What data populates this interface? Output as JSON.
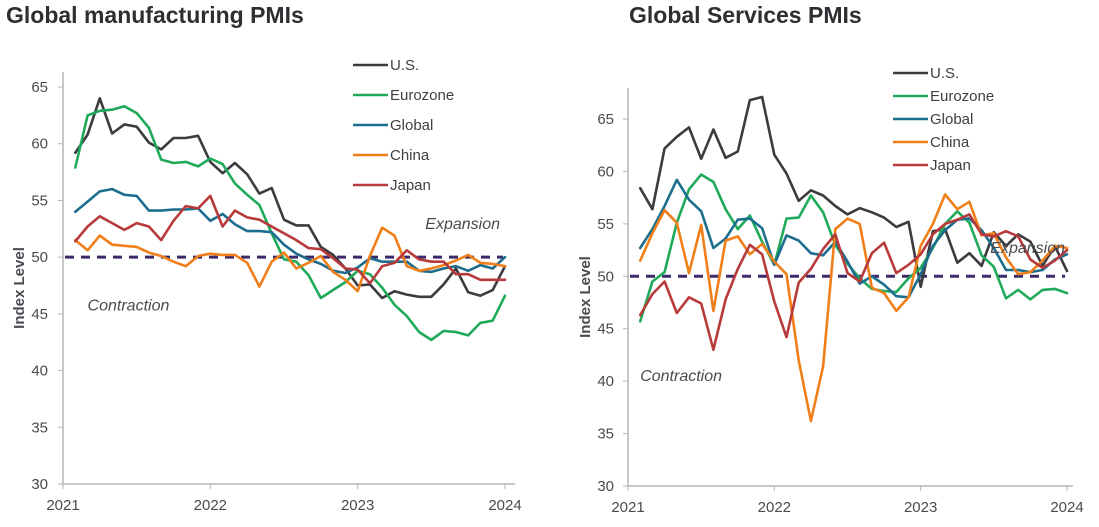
{
  "chart_data": [
    {
      "type": "line",
      "title": "Global manufacturing PMIs",
      "xlabel": "",
      "ylabel": "Index Level",
      "ylim": [
        30,
        66
      ],
      "yticks": [
        30,
        35,
        40,
        45,
        50,
        55,
        60,
        65
      ],
      "xticks": [
        "2021",
        "2022",
        "2023",
        "2024"
      ],
      "x_range": [
        "2021-01",
        "2024-01"
      ],
      "legend_position": "top-right",
      "reference_line": {
        "value": 50,
        "style": "dashed",
        "color": "#3d2a6b"
      },
      "annotations": [
        {
          "text": "Expansion",
          "x": "2023-06",
          "y": 52.5
        },
        {
          "text": "Contraction",
          "x": "2021-03",
          "y": 45.3
        }
      ],
      "x": [
        "2021-02",
        "2021-03",
        "2021-04",
        "2021-05",
        "2021-06",
        "2021-07",
        "2021-08",
        "2021-09",
        "2021-10",
        "2021-11",
        "2021-12",
        "2022-01",
        "2022-02",
        "2022-03",
        "2022-04",
        "2022-05",
        "2022-06",
        "2022-07",
        "2022-08",
        "2022-09",
        "2022-10",
        "2022-11",
        "2022-12",
        "2023-01",
        "2023-02",
        "2023-03",
        "2023-04",
        "2023-05",
        "2023-06",
        "2023-07",
        "2023-08",
        "2023-09",
        "2023-10",
        "2023-11",
        "2023-12",
        "2024-01"
      ],
      "series": [
        {
          "name": "U.S.",
          "color": "#3b3b40",
          "values": [
            59.2,
            60.8,
            64.0,
            60.9,
            61.7,
            61.5,
            60.1,
            59.5,
            60.5,
            60.5,
            60.7,
            58.4,
            57.4,
            58.3,
            57.3,
            55.6,
            56.1,
            53.3,
            52.8,
            52.8,
            50.9,
            50.2,
            49.0,
            47.5,
            47.6,
            46.4,
            47.0,
            46.7,
            46.5,
            46.5,
            47.6,
            49.0,
            46.9,
            46.6,
            47.1,
            49.2
          ]
        },
        {
          "name": "Eurozone",
          "color": "#1faa5a",
          "values": [
            57.9,
            62.5,
            62.9,
            63.0,
            63.3,
            62.7,
            61.4,
            58.6,
            58.3,
            58.4,
            58.0,
            58.7,
            58.2,
            56.5,
            55.5,
            54.6,
            52.1,
            49.8,
            49.6,
            48.4,
            46.4,
            47.1,
            47.8,
            48.8,
            48.5,
            47.3,
            45.8,
            44.8,
            43.4,
            42.7,
            43.5,
            43.4,
            43.1,
            44.2,
            44.4,
            46.6
          ]
        },
        {
          "name": "Global",
          "color": "#1d6e8e",
          "values": [
            54.0,
            54.9,
            55.8,
            56.0,
            55.5,
            55.4,
            54.1,
            54.1,
            54.2,
            54.2,
            54.3,
            53.2,
            53.8,
            52.9,
            52.3,
            52.3,
            52.2,
            51.1,
            50.3,
            49.8,
            49.4,
            48.8,
            48.6,
            49.1,
            49.9,
            49.6,
            49.6,
            49.6,
            48.8,
            48.7,
            49.0,
            49.2,
            48.8,
            49.3,
            49.0,
            50.0
          ]
        },
        {
          "name": "China",
          "color": "#f07f19",
          "values": [
            51.5,
            50.6,
            51.9,
            51.1,
            51.0,
            50.9,
            50.4,
            50.1,
            49.6,
            49.2,
            50.1,
            50.3,
            50.2,
            50.2,
            49.5,
            47.4,
            49.6,
            50.4,
            49.0,
            49.5,
            50.1,
            48.7,
            48.0,
            47.0,
            50.1,
            52.6,
            51.9,
            49.2,
            48.8,
            49.0,
            49.3,
            49.7,
            50.2,
            49.5,
            49.4,
            49.2
          ]
        },
        {
          "name": "Japan",
          "color": "#b83a3a",
          "values": [
            51.4,
            52.7,
            53.6,
            53.0,
            52.4,
            53.0,
            52.7,
            51.5,
            53.2,
            54.5,
            54.3,
            55.4,
            52.7,
            54.1,
            53.5,
            53.3,
            52.7,
            52.1,
            51.5,
            50.8,
            50.7,
            49.9,
            49.0,
            48.9,
            47.7,
            49.2,
            49.5,
            50.6,
            49.8,
            49.6,
            49.6,
            48.5,
            48.5,
            48.0,
            48.0,
            48.0
          ]
        }
      ]
    },
    {
      "type": "line",
      "title": "Global Services PMIs",
      "xlabel": "",
      "ylabel": "Index Level",
      "ylim": [
        30,
        68
      ],
      "yticks": [
        30,
        35,
        40,
        45,
        50,
        55,
        60,
        65
      ],
      "xticks": [
        "2021",
        "2022",
        "2023",
        "2024"
      ],
      "x_range": [
        "2021-01",
        "2024-01"
      ],
      "legend_position": "top-right",
      "reference_line": {
        "value": 50,
        "style": "dashed",
        "color": "#3d2a6b"
      },
      "annotations": [
        {
          "text": "Expansion",
          "x": "2023-04",
          "y": 52.2
        },
        {
          "text": "Contraction",
          "x": "2021-02",
          "y": 40.0
        }
      ],
      "x": [
        "2021-02",
        "2021-03",
        "2021-04",
        "2021-05",
        "2021-06",
        "2021-07",
        "2021-08",
        "2021-09",
        "2021-10",
        "2021-11",
        "2021-12",
        "2022-01",
        "2022-02",
        "2022-03",
        "2022-04",
        "2022-05",
        "2022-06",
        "2022-07",
        "2022-08",
        "2022-09",
        "2022-10",
        "2022-11",
        "2022-12",
        "2023-01",
        "2023-02",
        "2023-03",
        "2023-04",
        "2023-05",
        "2023-06",
        "2023-07",
        "2023-08",
        "2023-09",
        "2023-10",
        "2023-11",
        "2023-12",
        "2024-01"
      ],
      "series": [
        {
          "name": "U.S.",
          "color": "#3b3b40",
          "values": [
            58.4,
            56.4,
            62.2,
            63.3,
            64.2,
            61.2,
            64.0,
            61.3,
            61.9,
            66.8,
            67.1,
            61.6,
            59.8,
            57.2,
            58.2,
            57.7,
            56.7,
            55.9,
            56.5,
            56.1,
            55.6,
            54.7,
            55.2,
            49.0,
            54.3,
            54.5,
            51.3,
            52.2,
            51.0,
            54.2,
            52.9,
            54.0,
            53.3,
            51.0,
            52.9,
            50.5
          ]
        },
        {
          "name": "Eurozone",
          "color": "#1faa5a",
          "values": [
            45.7,
            49.5,
            50.4,
            55.1,
            58.3,
            59.7,
            59.0,
            56.4,
            54.5,
            55.8,
            53.3,
            51.1,
            55.5,
            55.6,
            57.7,
            56.1,
            53.0,
            51.2,
            49.8,
            48.8,
            48.6,
            48.5,
            49.8,
            50.8,
            52.7,
            55.0,
            56.2,
            55.1,
            52.0,
            50.9,
            47.9,
            48.7,
            47.8,
            48.7,
            48.8,
            48.4
          ]
        },
        {
          "name": "Global",
          "color": "#1d6e8e",
          "values": [
            52.7,
            54.5,
            56.7,
            59.2,
            57.3,
            56.2,
            52.7,
            53.6,
            55.4,
            55.5,
            54.6,
            51.1,
            53.9,
            53.4,
            52.2,
            52.0,
            53.3,
            51.4,
            49.3,
            50.0,
            49.2,
            48.1,
            48.0,
            50.2,
            52.9,
            54.4,
            55.4,
            55.5,
            54.4,
            52.7,
            50.6,
            50.6,
            50.4,
            50.6,
            51.6,
            52.1
          ]
        },
        {
          "name": "China",
          "color": "#f07f19",
          "values": [
            51.5,
            54.1,
            56.3,
            55.1,
            50.3,
            54.9,
            46.7,
            53.4,
            53.8,
            52.1,
            53.1,
            51.4,
            50.2,
            42.0,
            36.2,
            41.4,
            54.5,
            55.5,
            55.0,
            48.9,
            48.4,
            46.7,
            48.0,
            52.9,
            55.0,
            57.8,
            56.4,
            57.1,
            53.9,
            54.1,
            51.8,
            50.2,
            50.4,
            51.5,
            52.9,
            52.7
          ]
        },
        {
          "name": "Japan",
          "color": "#b83a3a",
          "values": [
            46.3,
            48.3,
            49.5,
            46.5,
            48.0,
            47.4,
            43.0,
            47.8,
            50.7,
            53.0,
            52.1,
            47.6,
            44.2,
            49.4,
            50.7,
            52.6,
            54.0,
            50.3,
            49.5,
            52.2,
            53.2,
            50.3,
            51.1,
            52.1,
            54.0,
            55.0,
            55.4,
            55.9,
            54.0,
            53.8,
            54.3,
            53.8,
            51.6,
            50.8,
            51.5,
            52.5
          ]
        }
      ]
    }
  ]
}
